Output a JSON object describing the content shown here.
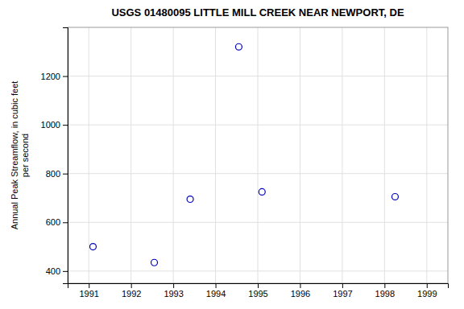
{
  "chart_data": {
    "type": "scatter",
    "title": "USGS 01480095 LITTLE MILL CREEK NEAR NEWPORT, DE",
    "y_label": "Annual Peak Streamflow, in cubic feet\nper second",
    "x": [
      1991.1,
      1992.55,
      1993.4,
      1994.55,
      1995.1,
      1998.25
    ],
    "values": [
      500,
      435,
      695,
      1320,
      725,
      705
    ],
    "color": "#0000bb",
    "marker": "open-circle",
    "xlim": [
      1990.5,
      1999.5
    ],
    "ylim": [
      350,
      1400
    ],
    "xticks": [
      1991,
      1992,
      1993,
      1994,
      1995,
      1996,
      1997,
      1998,
      1999
    ],
    "yticks": [
      400,
      600,
      800,
      1000,
      1200
    ],
    "grid": true
  }
}
